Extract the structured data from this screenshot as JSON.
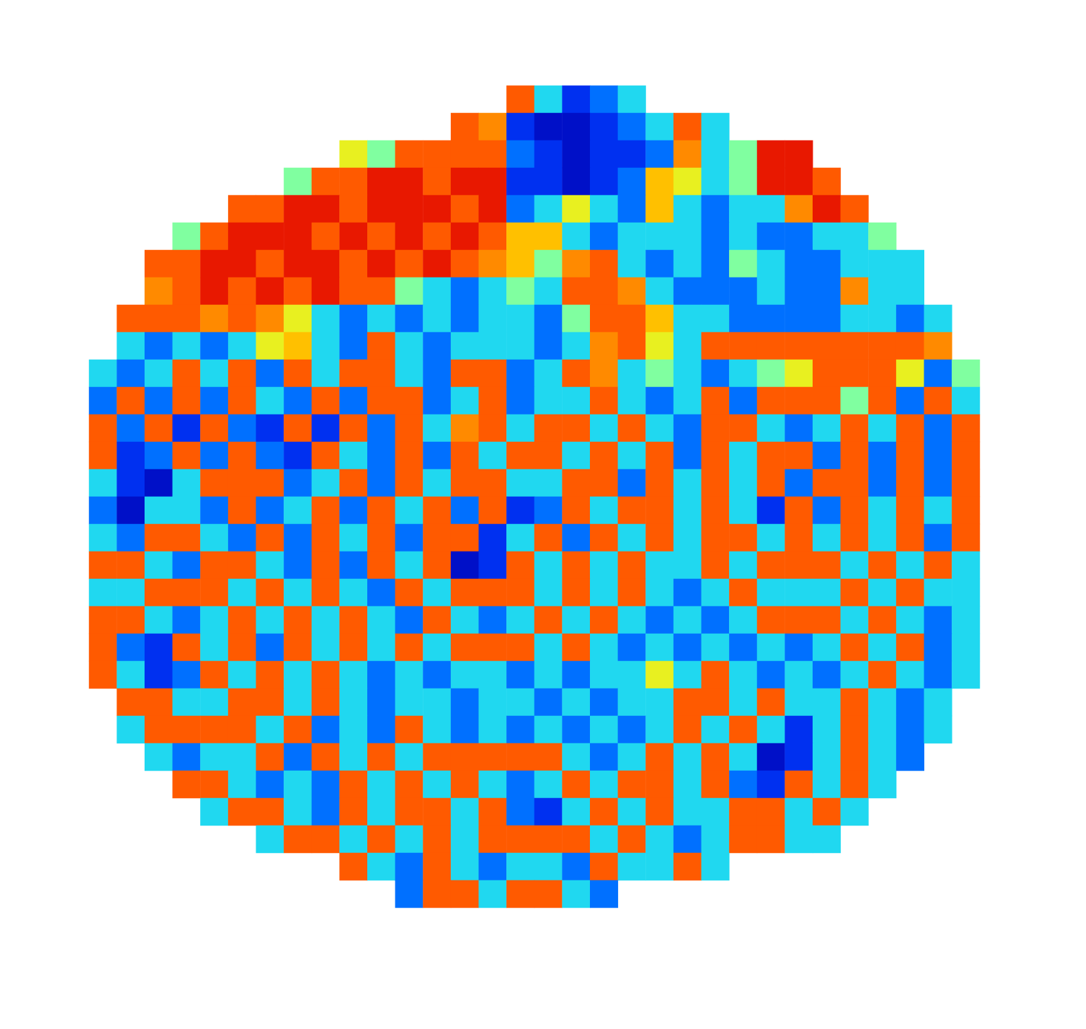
{
  "chart_data": {
    "type": "heatmap",
    "tick_labels": false,
    "value_range": [
      0,
      9
    ],
    "cells": [
      [
        null,
        null,
        null,
        null,
        null,
        null,
        null,
        null,
        null,
        null,
        null,
        null,
        null,
        null,
        null,
        8,
        3,
        1,
        2,
        3,
        null,
        null,
        null,
        null,
        null,
        null,
        null,
        null,
        null,
        null,
        null,
        null
      ],
      [
        null,
        null,
        null,
        null,
        null,
        null,
        null,
        null,
        null,
        null,
        null,
        null,
        null,
        8,
        7,
        1,
        0,
        0,
        1,
        2,
        3,
        8,
        3,
        null,
        null,
        null,
        null,
        null,
        null,
        null,
        null,
        null
      ],
      [
        null,
        null,
        null,
        null,
        null,
        null,
        null,
        null,
        null,
        5,
        4,
        8,
        8,
        8,
        8,
        2,
        1,
        0,
        1,
        1,
        2,
        7,
        3,
        4,
        9,
        9,
        null,
        null,
        null,
        null,
        null,
        null
      ],
      [
        null,
        null,
        null,
        null,
        null,
        null,
        null,
        4,
        8,
        8,
        9,
        9,
        8,
        9,
        9,
        1,
        1,
        0,
        1,
        2,
        6,
        5,
        3,
        4,
        9,
        9,
        8,
        null,
        null,
        null,
        null,
        null
      ],
      [
        null,
        null,
        null,
        null,
        null,
        8,
        8,
        9,
        9,
        8,
        9,
        9,
        9,
        8,
        9,
        2,
        3,
        5,
        3,
        2,
        6,
        3,
        2,
        3,
        3,
        7,
        9,
        8,
        null,
        null,
        null,
        null
      ],
      [
        null,
        null,
        null,
        4,
        8,
        9,
        9,
        9,
        8,
        9,
        8,
        9,
        8,
        9,
        8,
        6,
        6,
        3,
        2,
        3,
        3,
        3,
        2,
        3,
        2,
        2,
        3,
        3,
        4,
        null,
        null,
        null
      ],
      [
        null,
        null,
        8,
        8,
        9,
        9,
        8,
        9,
        9,
        8,
        9,
        8,
        9,
        8,
        7,
        6,
        4,
        7,
        8,
        3,
        2,
        3,
        2,
        4,
        3,
        2,
        2,
        3,
        3,
        3,
        null,
        null
      ],
      [
        null,
        null,
        7,
        8,
        9,
        8,
        9,
        8,
        9,
        8,
        8,
        4,
        3,
        2,
        3,
        4,
        3,
        8,
        8,
        7,
        3,
        2,
        2,
        2,
        3,
        2,
        2,
        7,
        3,
        3,
        null,
        null
      ],
      [
        null,
        8,
        8,
        8,
        7,
        8,
        7,
        5,
        3,
        2,
        3,
        2,
        3,
        2,
        3,
        3,
        2,
        4,
        8,
        8,
        6,
        3,
        3,
        2,
        2,
        2,
        2,
        3,
        3,
        2,
        3,
        null
      ],
      [
        null,
        3,
        2,
        3,
        2,
        3,
        5,
        6,
        3,
        2,
        8,
        3,
        2,
        3,
        3,
        3,
        2,
        3,
        7,
        8,
        5,
        3,
        8,
        8,
        8,
        8,
        8,
        8,
        8,
        8,
        7,
        null
      ],
      [
        3,
        2,
        3,
        8,
        3,
        8,
        2,
        8,
        3,
        8,
        8,
        3,
        2,
        8,
        8,
        2,
        3,
        8,
        7,
        3,
        4,
        3,
        2,
        3,
        4,
        5,
        8,
        8,
        8,
        5,
        2,
        4
      ],
      [
        2,
        8,
        2,
        8,
        2,
        8,
        3,
        2,
        8,
        2,
        8,
        8,
        2,
        3,
        8,
        2,
        3,
        3,
        8,
        3,
        2,
        3,
        8,
        2,
        8,
        8,
        8,
        4,
        8,
        2,
        8,
        3
      ],
      [
        8,
        2,
        8,
        1,
        8,
        2,
        1,
        8,
        1,
        8,
        2,
        8,
        3,
        7,
        8,
        3,
        8,
        8,
        3,
        8,
        3,
        2,
        8,
        8,
        3,
        2,
        3,
        8,
        3,
        8,
        2,
        8
      ],
      [
        8,
        1,
        2,
        8,
        2,
        8,
        2,
        1,
        8,
        3,
        2,
        8,
        2,
        8,
        3,
        8,
        8,
        3,
        8,
        3,
        8,
        2,
        8,
        3,
        8,
        8,
        2,
        8,
        2,
        8,
        2,
        8
      ],
      [
        3,
        1,
        0,
        3,
        8,
        8,
        8,
        2,
        3,
        8,
        2,
        8,
        3,
        8,
        8,
        3,
        3,
        8,
        8,
        2,
        8,
        3,
        8,
        3,
        8,
        2,
        8,
        8,
        2,
        8,
        2,
        8
      ],
      [
        2,
        0,
        3,
        3,
        2,
        8,
        2,
        3,
        8,
        2,
        8,
        3,
        8,
        2,
        8,
        1,
        2,
        8,
        3,
        8,
        8,
        3,
        8,
        3,
        1,
        8,
        2,
        8,
        3,
        8,
        3,
        8
      ],
      [
        3,
        2,
        8,
        8,
        3,
        2,
        8,
        2,
        8,
        3,
        8,
        2,
        8,
        8,
        1,
        3,
        8,
        2,
        8,
        3,
        8,
        3,
        8,
        8,
        3,
        8,
        3,
        8,
        3,
        8,
        2,
        8
      ],
      [
        8,
        8,
        3,
        2,
        8,
        8,
        3,
        2,
        8,
        2,
        8,
        3,
        8,
        0,
        1,
        8,
        3,
        8,
        3,
        8,
        3,
        3,
        8,
        3,
        8,
        8,
        8,
        3,
        8,
        3,
        8,
        3
      ],
      [
        3,
        3,
        8,
        8,
        8,
        3,
        8,
        3,
        8,
        3,
        2,
        8,
        3,
        8,
        8,
        8,
        3,
        8,
        3,
        8,
        3,
        2,
        3,
        8,
        3,
        3,
        3,
        8,
        3,
        8,
        3,
        3
      ],
      [
        8,
        8,
        3,
        2,
        3,
        8,
        3,
        8,
        3,
        8,
        3,
        2,
        8,
        3,
        2,
        3,
        8,
        3,
        8,
        3,
        2,
        3,
        2,
        3,
        8,
        8,
        8,
        3,
        8,
        3,
        2,
        3
      ],
      [
        8,
        2,
        1,
        8,
        3,
        8,
        2,
        8,
        3,
        8,
        3,
        8,
        3,
        8,
        8,
        8,
        3,
        8,
        3,
        2,
        3,
        2,
        3,
        2,
        3,
        2,
        3,
        8,
        3,
        8,
        2,
        3
      ],
      [
        8,
        3,
        1,
        2,
        8,
        3,
        8,
        3,
        8,
        3,
        2,
        3,
        2,
        3,
        3,
        2,
        3,
        2,
        3,
        3,
        5,
        3,
        8,
        3,
        2,
        3,
        2,
        3,
        8,
        3,
        2,
        3
      ],
      [
        null,
        8,
        8,
        3,
        3,
        8,
        8,
        3,
        8,
        3,
        2,
        3,
        3,
        2,
        3,
        3,
        2,
        3,
        2,
        3,
        3,
        8,
        8,
        3,
        8,
        3,
        3,
        8,
        3,
        2,
        3,
        null
      ],
      [
        null,
        3,
        8,
        8,
        8,
        8,
        3,
        8,
        2,
        3,
        2,
        8,
        3,
        2,
        3,
        2,
        3,
        2,
        3,
        2,
        3,
        8,
        3,
        8,
        3,
        1,
        3,
        8,
        3,
        2,
        3,
        null
      ],
      [
        null,
        null,
        3,
        2,
        3,
        3,
        8,
        2,
        8,
        3,
        8,
        3,
        8,
        8,
        8,
        8,
        8,
        3,
        2,
        3,
        8,
        3,
        8,
        3,
        0,
        1,
        3,
        8,
        3,
        2,
        null,
        null
      ],
      [
        null,
        null,
        null,
        8,
        8,
        3,
        2,
        3,
        2,
        8,
        3,
        8,
        3,
        8,
        3,
        2,
        3,
        8,
        3,
        8,
        8,
        3,
        8,
        2,
        1,
        8,
        3,
        8,
        3,
        null,
        null,
        null
      ],
      [
        null,
        null,
        null,
        null,
        3,
        8,
        8,
        3,
        2,
        8,
        3,
        8,
        8,
        3,
        8,
        2,
        1,
        3,
        8,
        3,
        8,
        3,
        3,
        8,
        8,
        3,
        8,
        3,
        null,
        null,
        null,
        null
      ],
      [
        null,
        null,
        null,
        null,
        null,
        null,
        3,
        8,
        8,
        3,
        8,
        3,
        8,
        3,
        8,
        8,
        8,
        8,
        3,
        8,
        3,
        2,
        3,
        8,
        8,
        3,
        3,
        null,
        null,
        null,
        null,
        null
      ],
      [
        null,
        null,
        null,
        null,
        null,
        null,
        null,
        null,
        null,
        8,
        3,
        2,
        8,
        3,
        2,
        3,
        3,
        2,
        8,
        3,
        3,
        8,
        3,
        null,
        null,
        null,
        null,
        null,
        null,
        null,
        null,
        null
      ],
      [
        null,
        null,
        null,
        null,
        null,
        null,
        null,
        null,
        null,
        null,
        null,
        2,
        8,
        8,
        3,
        8,
        8,
        3,
        2,
        null,
        null,
        null,
        null,
        null,
        null,
        null,
        null,
        null,
        null,
        null,
        null,
        null
      ]
    ]
  }
}
